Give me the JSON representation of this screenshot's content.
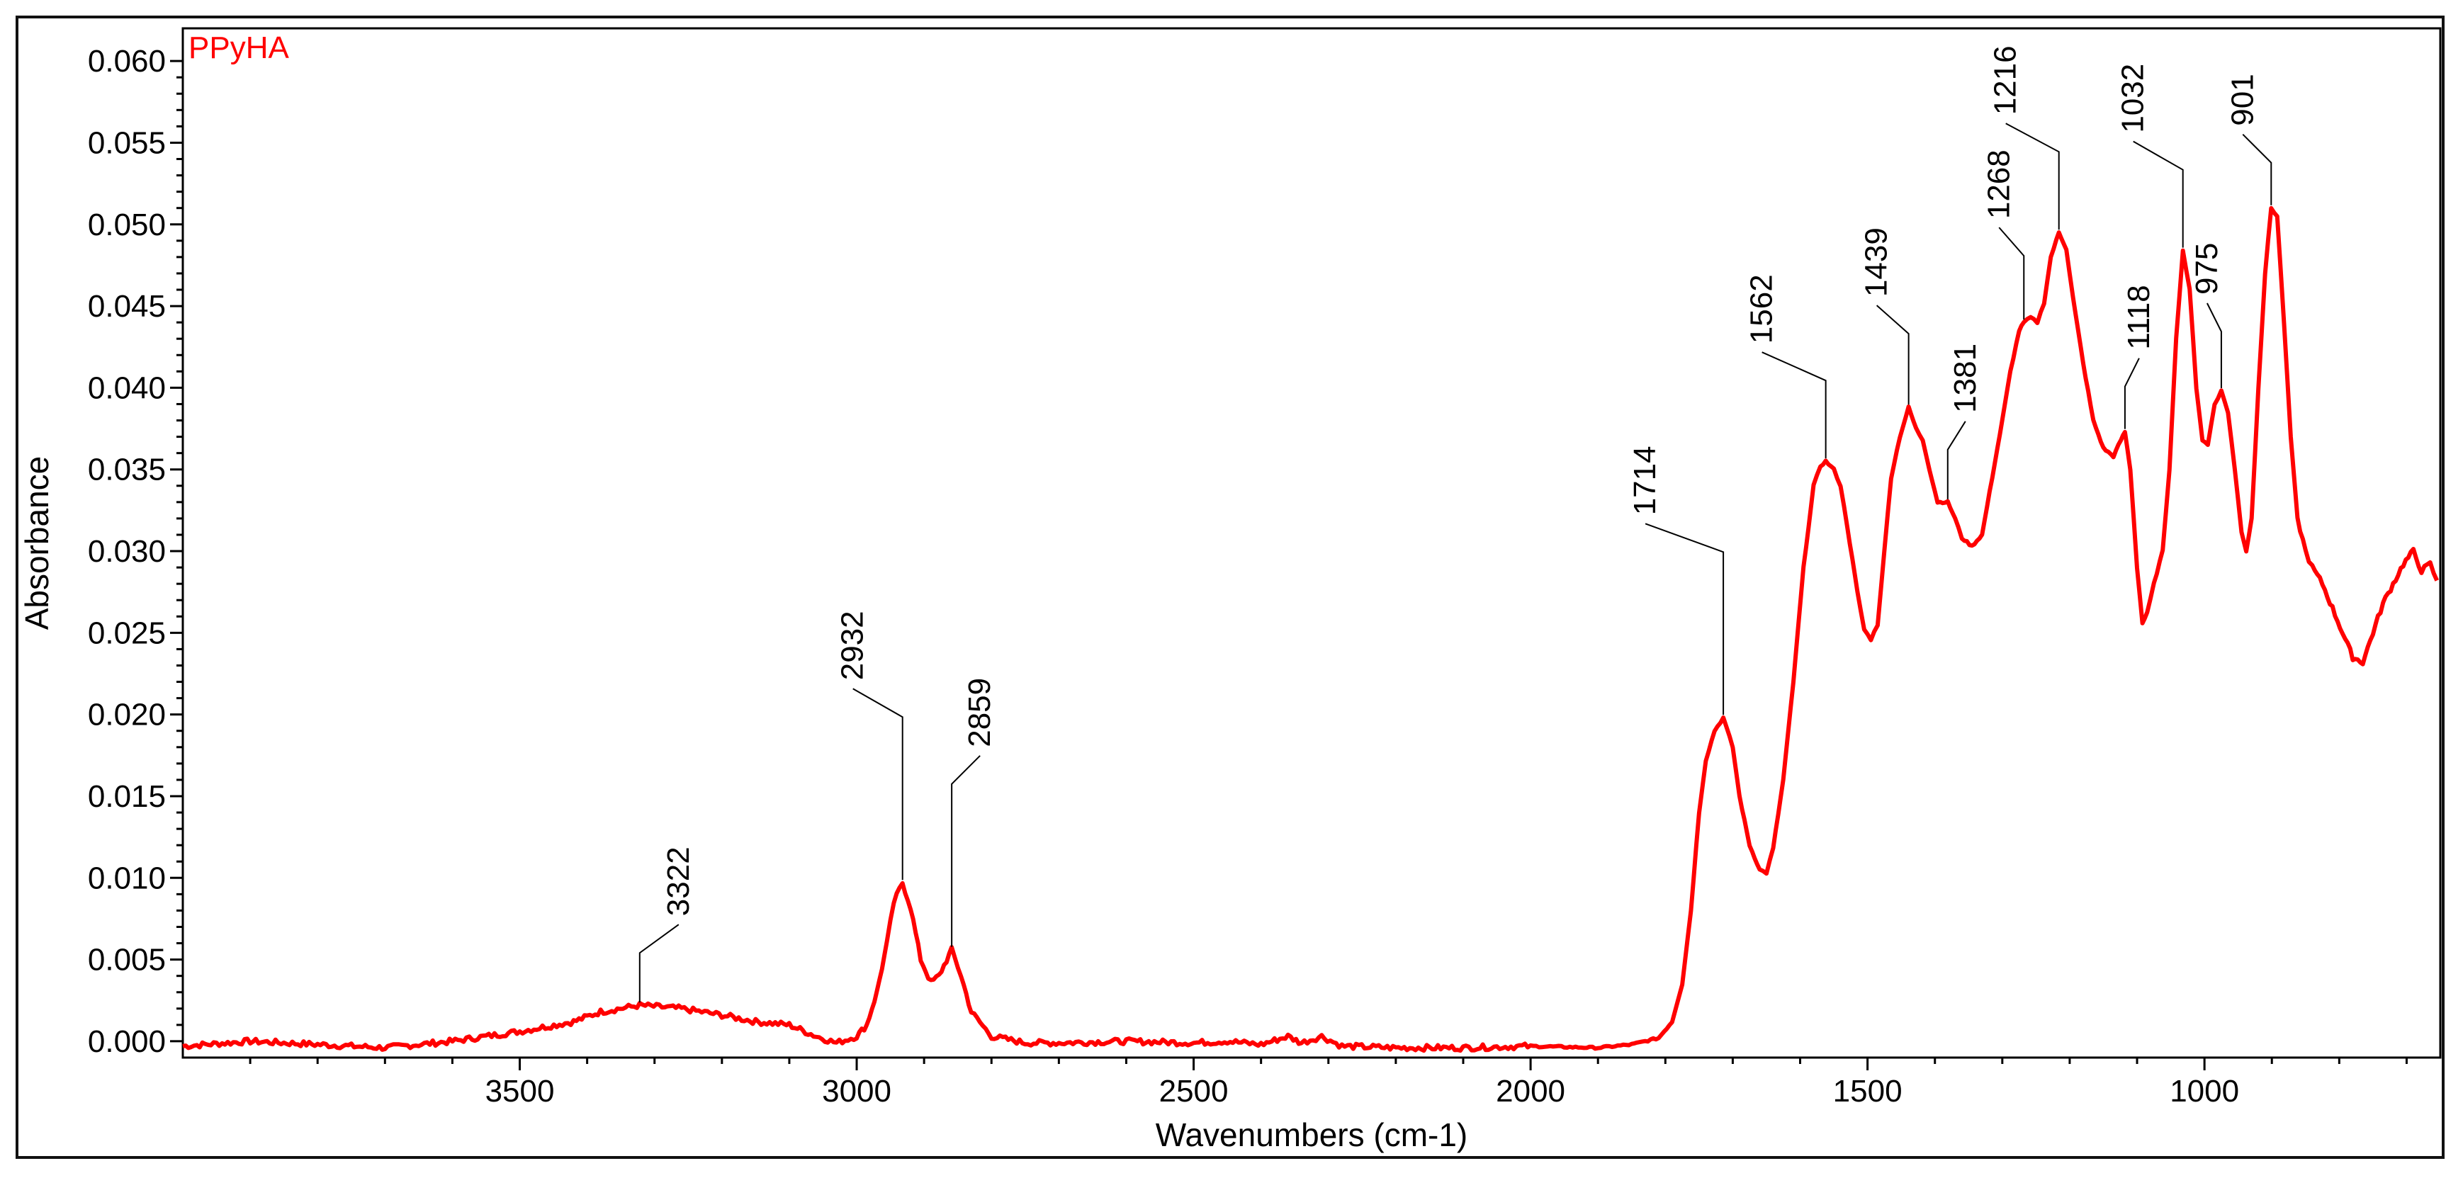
{
  "chart_data": {
    "type": "line",
    "title": "",
    "xlabel": "Wavenumbers (cm-1)",
    "ylabel": "Absorbance",
    "xlim": [
      4000,
      650
    ],
    "ylim": [
      -0.001,
      0.062
    ],
    "x_ticks": [
      3500,
      3000,
      2500,
      2000,
      1500,
      1000
    ],
    "y_ticks": [
      0.0,
      0.005,
      0.01,
      0.015,
      0.02,
      0.025,
      0.03,
      0.035,
      0.04,
      0.045,
      0.05,
      0.055,
      0.06
    ],
    "y_tick_labels": [
      "0.000",
      "0.005",
      "0.010",
      "0.015",
      "0.020",
      "0.025",
      "0.030",
      "0.035",
      "0.040",
      "0.045",
      "0.050",
      "0.055",
      "0.060"
    ],
    "grid": false,
    "series": [
      {
        "name": "PPyHA",
        "color": "#ff0000",
        "points": [
          [
            4000,
            -0.0003
          ],
          [
            3900,
            0.0
          ],
          [
            3800,
            -0.0002
          ],
          [
            3700,
            -0.0004
          ],
          [
            3600,
            0.0
          ],
          [
            3500,
            0.0006
          ],
          [
            3420,
            0.0012
          ],
          [
            3380,
            0.0018
          ],
          [
            3322,
            0.0022
          ],
          [
            3260,
            0.002
          ],
          [
            3200,
            0.0016
          ],
          [
            3150,
            0.0012
          ],
          [
            3100,
            0.001
          ],
          [
            3060,
            0.0003
          ],
          [
            3030,
            -0.0001
          ],
          [
            3000,
            0.0003
          ],
          [
            2985,
            0.001
          ],
          [
            2970,
            0.003
          ],
          [
            2955,
            0.006
          ],
          [
            2945,
            0.0085
          ],
          [
            2932,
            0.0097
          ],
          [
            2920,
            0.0082
          ],
          [
            2905,
            0.005
          ],
          [
            2890,
            0.0036
          ],
          [
            2878,
            0.004
          ],
          [
            2859,
            0.0056
          ],
          [
            2845,
            0.004
          ],
          [
            2830,
            0.0018
          ],
          [
            2800,
            0.0003
          ],
          [
            2750,
            -0.0001
          ],
          [
            2700,
            -0.0001
          ],
          [
            2600,
            0.0
          ],
          [
            2500,
            -0.0001
          ],
          [
            2450,
            0.0
          ],
          [
            2400,
            -0.0002
          ],
          [
            2360,
            0.0003
          ],
          [
            2340,
            -0.0001
          ],
          [
            2310,
            0.0003
          ],
          [
            2280,
            -0.0003
          ],
          [
            2200,
            -0.0004
          ],
          [
            2100,
            -0.0004
          ],
          [
            2000,
            -0.0003
          ],
          [
            1900,
            -0.0004
          ],
          [
            1850,
            -0.0002
          ],
          [
            1810,
            0.0002
          ],
          [
            1790,
            0.0012
          ],
          [
            1775,
            0.0035
          ],
          [
            1762,
            0.008
          ],
          [
            1750,
            0.014
          ],
          [
            1740,
            0.0172
          ],
          [
            1727,
            0.019
          ],
          [
            1714,
            0.0198
          ],
          [
            1700,
            0.018
          ],
          [
            1690,
            0.015
          ],
          [
            1675,
            0.012
          ],
          [
            1660,
            0.0105
          ],
          [
            1650,
            0.0103
          ],
          [
            1640,
            0.0118
          ],
          [
            1625,
            0.016
          ],
          [
            1610,
            0.022
          ],
          [
            1595,
            0.029
          ],
          [
            1580,
            0.034
          ],
          [
            1570,
            0.0352
          ],
          [
            1562,
            0.0355
          ],
          [
            1550,
            0.035
          ],
          [
            1540,
            0.034
          ],
          [
            1530,
            0.0315
          ],
          [
            1515,
            0.0275
          ],
          [
            1505,
            0.0252
          ],
          [
            1495,
            0.0246
          ],
          [
            1485,
            0.0255
          ],
          [
            1475,
            0.03
          ],
          [
            1465,
            0.0345
          ],
          [
            1452,
            0.037
          ],
          [
            1439,
            0.0388
          ],
          [
            1428,
            0.0375
          ],
          [
            1418,
            0.0368
          ],
          [
            1408,
            0.035
          ],
          [
            1396,
            0.033
          ],
          [
            1381,
            0.033
          ],
          [
            1370,
            0.032
          ],
          [
            1360,
            0.0308
          ],
          [
            1345,
            0.0303
          ],
          [
            1330,
            0.031
          ],
          [
            1315,
            0.0345
          ],
          [
            1300,
            0.038
          ],
          [
            1288,
            0.041
          ],
          [
            1275,
            0.0435
          ],
          [
            1268,
            0.044
          ],
          [
            1258,
            0.0443
          ],
          [
            1248,
            0.044
          ],
          [
            1238,
            0.0452
          ],
          [
            1228,
            0.048
          ],
          [
            1216,
            0.0495
          ],
          [
            1205,
            0.0485
          ],
          [
            1195,
            0.0455
          ],
          [
            1180,
            0.0415
          ],
          [
            1165,
            0.038
          ],
          [
            1150,
            0.0363
          ],
          [
            1135,
            0.0358
          ],
          [
            1124,
            0.0368
          ],
          [
            1118,
            0.0373
          ],
          [
            1110,
            0.035
          ],
          [
            1100,
            0.029
          ],
          [
            1092,
            0.0256
          ],
          [
            1085,
            0.0262
          ],
          [
            1075,
            0.028
          ],
          [
            1062,
            0.03
          ],
          [
            1052,
            0.035
          ],
          [
            1042,
            0.043
          ],
          [
            1032,
            0.0484
          ],
          [
            1022,
            0.046
          ],
          [
            1012,
            0.04
          ],
          [
            1003,
            0.0368
          ],
          [
            995,
            0.0365
          ],
          [
            985,
            0.039
          ],
          [
            975,
            0.0398
          ],
          [
            965,
            0.0385
          ],
          [
            955,
            0.035
          ],
          [
            945,
            0.0312
          ],
          [
            938,
            0.03
          ],
          [
            930,
            0.032
          ],
          [
            920,
            0.04
          ],
          [
            910,
            0.047
          ],
          [
            901,
            0.051
          ],
          [
            892,
            0.0505
          ],
          [
            882,
            0.044
          ],
          [
            872,
            0.037
          ],
          [
            862,
            0.032
          ],
          [
            850,
            0.03
          ],
          [
            840,
            0.029
          ],
          [
            825,
            0.028
          ],
          [
            810,
            0.0265
          ],
          [
            795,
            0.025
          ],
          [
            780,
            0.0235
          ],
          [
            765,
            0.0232
          ],
          [
            750,
            0.025
          ],
          [
            735,
            0.0268
          ],
          [
            720,
            0.028
          ],
          [
            705,
            0.0292
          ],
          [
            690,
            0.03
          ],
          [
            678,
            0.0288
          ],
          [
            665,
            0.0292
          ],
          [
            655,
            0.0282
          ]
        ]
      }
    ],
    "annotations": [
      {
        "label": "3322",
        "x": 3322,
        "y": 0.0022
      },
      {
        "label": "2932",
        "x": 2932,
        "y": 0.0097
      },
      {
        "label": "2859",
        "x": 2859,
        "y": 0.0056
      },
      {
        "label": "1714",
        "x": 1714,
        "y": 0.0198
      },
      {
        "label": "1562",
        "x": 1562,
        "y": 0.0355
      },
      {
        "label": "1439",
        "x": 1439,
        "y": 0.0388
      },
      {
        "label": "1381",
        "x": 1381,
        "y": 0.033
      },
      {
        "label": "1268",
        "x": 1268,
        "y": 0.044
      },
      {
        "label": "1216",
        "x": 1216,
        "y": 0.0495
      },
      {
        "label": "1118",
        "x": 1118,
        "y": 0.0373
      },
      {
        "label": "1032",
        "x": 1032,
        "y": 0.0484
      },
      {
        "label": "975",
        "x": 975,
        "y": 0.0398
      },
      {
        "label": "901",
        "x": 901,
        "y": 0.051
      }
    ]
  }
}
